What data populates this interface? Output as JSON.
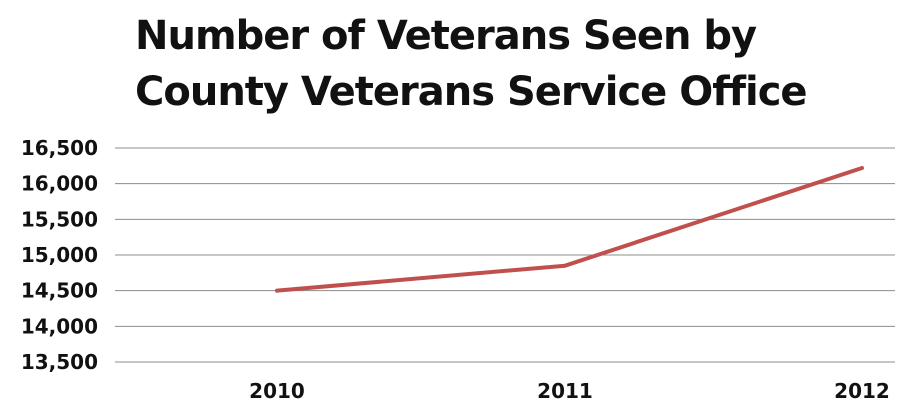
{
  "chart_data": {
    "type": "line",
    "title": [
      "Number of Veterans Seen by",
      "County Veterans Service Office"
    ],
    "xlabel": "",
    "ylabel": "",
    "categories": [
      "2010",
      "2011",
      "2012"
    ],
    "series": [
      {
        "values": [
          14500,
          14850,
          16220
        ]
      }
    ],
    "ylim": [
      13500,
      16500
    ],
    "yticks": [
      13500,
      14000,
      14500,
      15000,
      15500,
      16000,
      16500
    ],
    "ytick_labels": [
      "13,500",
      "14,000",
      "14,500",
      "15,000",
      "15,500",
      "16,000",
      "16,500"
    ],
    "grid": true,
    "legend": "none",
    "colors": {
      "line": "#C0504D",
      "grid": "#8c8c8c",
      "text": "#111111"
    }
  }
}
